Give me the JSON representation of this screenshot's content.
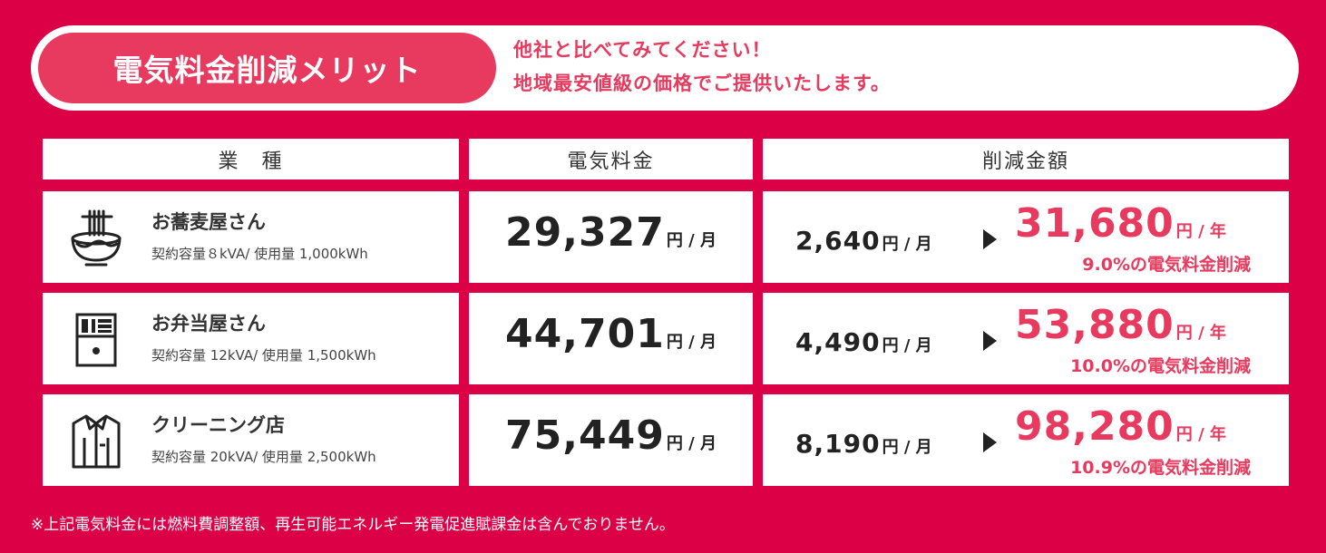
{
  "banner": {
    "title": "電気料金削減メリット",
    "line1": "他社と比べてみてください！",
    "line2": "地域最安値級の価格でご提供いたします。"
  },
  "headers": {
    "business": "業　種",
    "fee": "電気料金",
    "savings": "削減金額"
  },
  "rows": [
    {
      "icon": "soba-bowl-icon",
      "name": "お蕎麦屋さん",
      "capacity": "契約容量８kVA/ 使用量 1,000kWh",
      "fee": "29,327",
      "fee_unit": "円 / 月",
      "monthly_saving": "2,640",
      "monthly_unit": "円 / 月",
      "yearly_saving": "31,680",
      "yearly_unit": "円 / 年",
      "reduction": "9.0%の電気料金削減"
    },
    {
      "icon": "bento-cabinet-icon",
      "name": "お弁当屋さん",
      "capacity": "契約容量 12kVA/ 使用量 1,500kWh",
      "fee": "44,701",
      "fee_unit": "円 / 月",
      "monthly_saving": "4,490",
      "monthly_unit": "円 / 月",
      "yearly_saving": "53,880",
      "yearly_unit": "円 / 年",
      "reduction": "10.0%の電気料金削減"
    },
    {
      "icon": "shirt-icon",
      "name": "クリーニング店",
      "capacity": "契約容量 20kVA/ 使用量 2,500kWh",
      "fee": "75,449",
      "fee_unit": "円 / 月",
      "monthly_saving": "8,190",
      "monthly_unit": "円 / 月",
      "yearly_saving": "98,280",
      "yearly_unit": "円 / 年",
      "reduction": "10.9%の電気料金削減"
    }
  ],
  "footnote": "※上記電気料金には燃料費調整額、再生可能エネルギー発電促進賦課金は含んでおりません。",
  "colors": {
    "background": "#dc0046",
    "accent": "#e83a5e",
    "text": "#222222"
  }
}
